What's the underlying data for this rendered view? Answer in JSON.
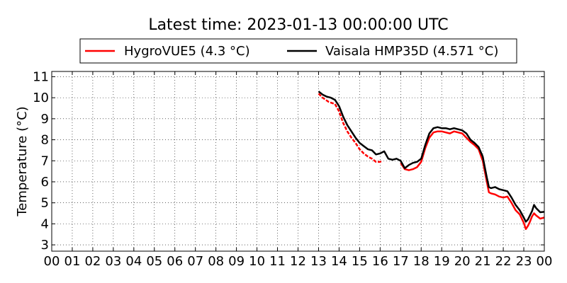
{
  "chart_data": {
    "type": "line",
    "title": "Latest time: 2023-01-13 00:00:00 UTC",
    "xlabel": "",
    "ylabel": "Temperature (°C)",
    "xlim": [
      0,
      24
    ],
    "ylim": [
      2.7,
      11.25
    ],
    "grid": true,
    "legend_position": "top-center",
    "x_tick_labels": [
      "00",
      "01",
      "02",
      "03",
      "04",
      "05",
      "06",
      "07",
      "08",
      "09",
      "10",
      "11",
      "12",
      "13",
      "14",
      "15",
      "16",
      "17",
      "18",
      "19",
      "20",
      "21",
      "22",
      "23",
      "00"
    ],
    "y_ticks": [
      3,
      4,
      5,
      6,
      7,
      8,
      9,
      10,
      11
    ],
    "series": [
      {
        "name": "HygroVUE5 (4.3 °C)",
        "color": "#ff0000",
        "style": "dashed",
        "x": [
          13.0,
          13.2,
          13.5,
          13.8,
          14.0,
          14.2,
          14.4,
          14.6,
          14.8,
          15.0,
          15.2,
          15.4,
          15.6,
          15.8,
          16.0,
          16.1
        ],
        "y": [
          10.2,
          10.0,
          9.8,
          9.7,
          9.35,
          8.8,
          8.4,
          8.1,
          7.85,
          7.55,
          7.35,
          7.2,
          7.1,
          6.95,
          6.95,
          7.0
        ]
      },
      {
        "name": "HygroVUE5 (4.3 °C)",
        "color": "#ff0000",
        "style": "solid",
        "x": [
          17.0,
          17.2,
          17.4,
          17.6,
          17.8,
          18.0,
          18.2,
          18.4,
          18.6,
          18.8,
          19.0,
          19.2,
          19.4,
          19.6,
          19.8,
          20.0,
          20.2,
          20.4,
          20.6,
          20.8,
          21.0,
          21.1,
          21.2,
          21.3,
          21.4,
          21.6,
          21.8,
          22.0,
          22.2,
          22.4,
          22.6,
          22.8,
          23.0,
          23.1,
          23.2,
          23.3,
          23.4,
          23.5,
          23.6,
          23.8,
          24.0
        ],
        "y": [
          6.9,
          6.6,
          6.55,
          6.6,
          6.7,
          6.95,
          7.6,
          8.1,
          8.35,
          8.4,
          8.4,
          8.35,
          8.3,
          8.4,
          8.35,
          8.3,
          8.1,
          7.9,
          7.75,
          7.55,
          7.0,
          6.5,
          6.0,
          5.5,
          5.45,
          5.4,
          5.3,
          5.25,
          5.3,
          5.0,
          4.65,
          4.45,
          4.05,
          3.75,
          3.9,
          4.1,
          4.35,
          4.5,
          4.4,
          4.25,
          4.3
        ]
      },
      {
        "name": "Vaisala HMP35D (4.571 °C)",
        "color": "#000000",
        "style": "solid",
        "x": [
          13.0,
          13.2,
          13.4,
          13.6,
          13.8,
          14.0,
          14.2,
          14.4,
          14.6,
          14.8,
          15.0,
          15.2,
          15.4,
          15.6,
          15.8,
          16.0,
          16.2,
          16.4,
          16.6,
          16.8,
          17.0,
          17.2,
          17.4,
          17.6,
          17.8,
          18.0,
          18.2,
          18.4,
          18.6,
          18.8,
          19.0,
          19.2,
          19.4,
          19.6,
          19.8,
          20.0,
          20.2,
          20.4,
          20.6,
          20.8,
          21.0,
          21.1,
          21.2,
          21.3,
          21.4,
          21.6,
          21.8,
          22.0,
          22.2,
          22.4,
          22.6,
          22.8,
          23.0,
          23.1,
          23.2,
          23.3,
          23.4,
          23.5,
          23.6,
          23.8,
          24.0
        ],
        "y": [
          10.3,
          10.15,
          10.05,
          10.0,
          9.9,
          9.6,
          9.1,
          8.7,
          8.4,
          8.1,
          7.85,
          7.7,
          7.55,
          7.5,
          7.3,
          7.35,
          7.45,
          7.1,
          7.05,
          7.1,
          7.0,
          6.65,
          6.8,
          6.9,
          6.95,
          7.1,
          7.75,
          8.3,
          8.55,
          8.6,
          8.55,
          8.55,
          8.5,
          8.55,
          8.5,
          8.45,
          8.3,
          8.0,
          7.85,
          7.65,
          7.2,
          6.7,
          6.2,
          5.75,
          5.7,
          5.75,
          5.65,
          5.6,
          5.55,
          5.25,
          4.9,
          4.65,
          4.3,
          4.1,
          4.2,
          4.4,
          4.6,
          4.9,
          4.75,
          4.55,
          4.57
        ]
      }
    ]
  }
}
